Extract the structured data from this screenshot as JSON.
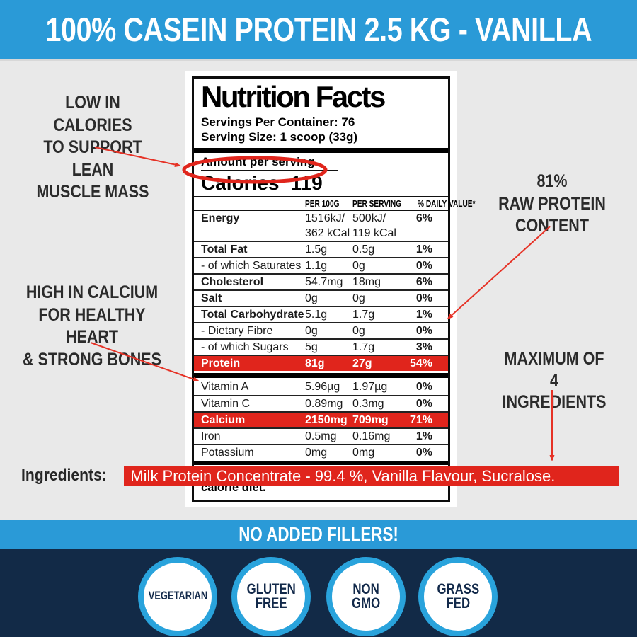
{
  "banner": {
    "title": "100% CASEIN PROTEIN 2.5 KG - VANILLA"
  },
  "callouts": {
    "low_calories": "LOW IN CALORIES\nTO SUPPORT LEAN\nMUSCLE MASS",
    "high_calcium": "HIGH IN CALCIUM\nFOR HEALTHY HEART\n& STRONG BONES",
    "raw_protein": "81%\nRAW PROTEIN\nCONTENT",
    "max_ingredients": "MAXIMUM OF\n4 INGREDIENTS"
  },
  "label": {
    "title": "Nutrition Facts",
    "servings_per_container": "Servings Per Container: 76",
    "serving_size": "Serving Size: 1 scoop (33g)",
    "amount_per_serving": "Amount per serving",
    "calories_label": "Calories",
    "calories_value": "119",
    "columns": [
      "PER 100G",
      "PER SERVING",
      "% DAILY VALUE*"
    ],
    "rows_main": [
      {
        "label": "Energy",
        "per_100g": "1516kJ/\n362 kCal",
        "per_serving": "500kJ/\n119 kCal",
        "daily_value": "6%",
        "bold": true,
        "highlight": false
      },
      {
        "label": "Total Fat",
        "per_100g": "1.5g",
        "per_serving": "0.5g",
        "daily_value": "1%",
        "bold": true,
        "highlight": false
      },
      {
        "label": "- of which Saturates",
        "per_100g": "1.1g",
        "per_serving": "0g",
        "daily_value": "0%",
        "bold": false,
        "highlight": false
      },
      {
        "label": "Cholesterol",
        "per_100g": "54.7mg",
        "per_serving": "18mg",
        "daily_value": "6%",
        "bold": true,
        "highlight": false
      },
      {
        "label": "Salt",
        "per_100g": "0g",
        "per_serving": "0g",
        "daily_value": "0%",
        "bold": true,
        "highlight": false
      },
      {
        "label": "Total Carbohydrate",
        "per_100g": "5.1g",
        "per_serving": "1.7g",
        "daily_value": "1%",
        "bold": true,
        "highlight": false
      },
      {
        "label": "- Dietary Fibre",
        "per_100g": "0g",
        "per_serving": "0g",
        "daily_value": "0%",
        "bold": false,
        "highlight": false
      },
      {
        "label": "- of which Sugars",
        "per_100g": "5g",
        "per_serving": "1.7g",
        "daily_value": "3%",
        "bold": false,
        "highlight": false
      },
      {
        "label": "Protein",
        "per_100g": "81g",
        "per_serving": "27g",
        "daily_value": "54%",
        "bold": true,
        "highlight": true
      }
    ],
    "rows_micro": [
      {
        "label": "Vitamin A",
        "per_100g": "5.96µg",
        "per_serving": "1.97µg",
        "daily_value": "0%",
        "bold": false,
        "highlight": false
      },
      {
        "label": "Vitamin C",
        "per_100g": "0.89mg",
        "per_serving": "0.3mg",
        "daily_value": "0%",
        "bold": false,
        "highlight": false
      },
      {
        "label": "Calcium",
        "per_100g": "2150mg",
        "per_serving": "709mg",
        "daily_value": "71%",
        "bold": true,
        "highlight": true
      },
      {
        "label": "Iron",
        "per_100g": "0.5mg",
        "per_serving": "0.16mg",
        "daily_value": "1%",
        "bold": false,
        "highlight": false
      },
      {
        "label": "Potassium",
        "per_100g": "0mg",
        "per_serving": "0mg",
        "daily_value": "0%",
        "bold": false,
        "highlight": false
      }
    ],
    "footnote": "*Percent daily values are based on a 2000-calorie diet."
  },
  "ingredients": {
    "label": "Ingredients:",
    "value": "Milk Protein Concentrate - 99.4 %, Vanilla Flavour, Sucralose."
  },
  "fillers_banner": {
    "text": "NO ADDED FILLERS!"
  },
  "badges": [
    {
      "label": "VEGETARIAN"
    },
    {
      "label": "GLUTEN\nFREE"
    },
    {
      "label": "NON\nGMO"
    },
    {
      "label": "GRASS\nFED"
    }
  ],
  "colors": {
    "accent_blue": "#2A9AD7",
    "highlight_red": "#E0251C",
    "arrow_red": "#E63226",
    "navy": "#122A47",
    "background_gray": "#E9E9E9"
  }
}
